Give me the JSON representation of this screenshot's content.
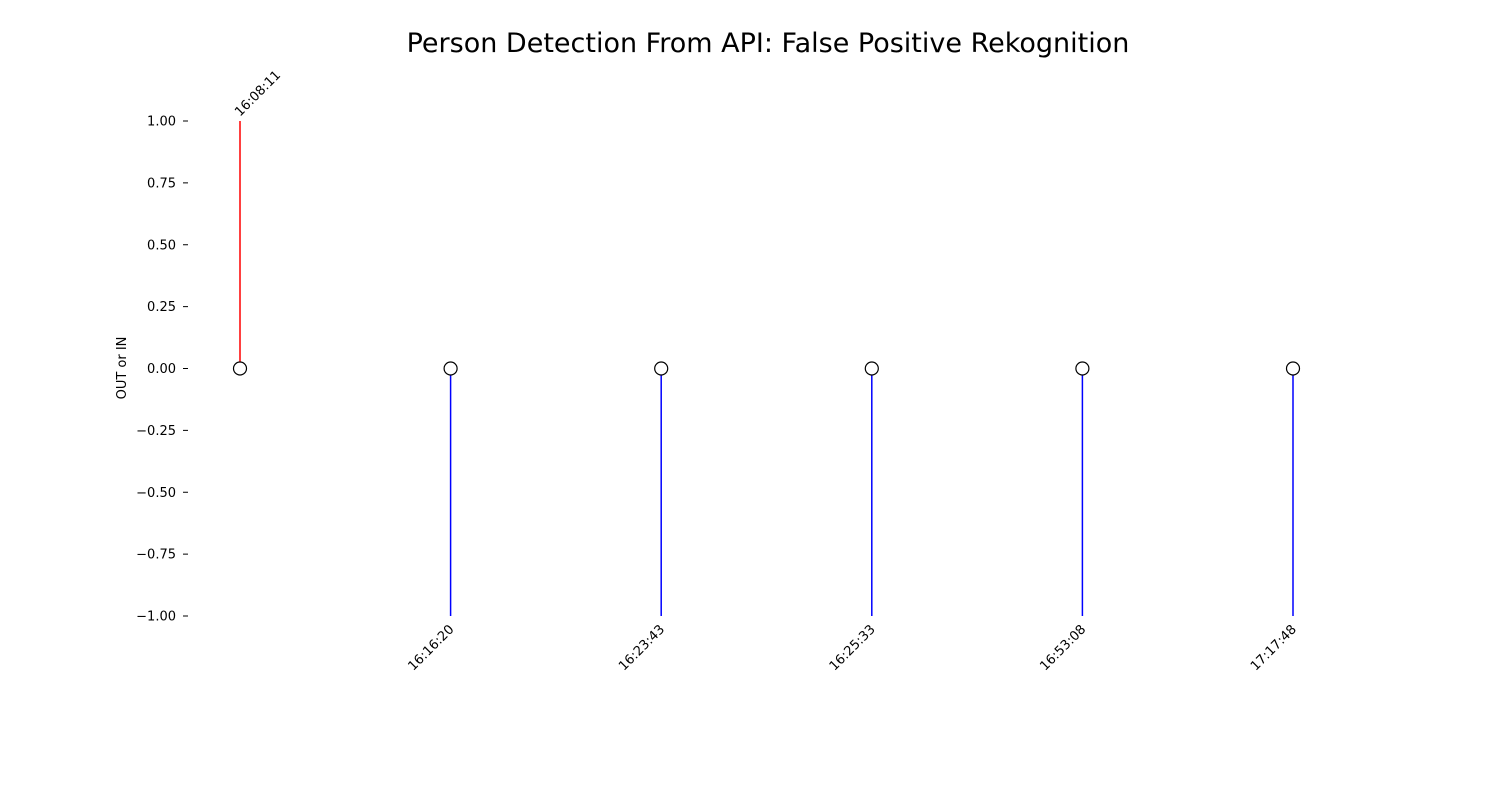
{
  "chart_data": {
    "type": "stem",
    "title": "Person Detection From API: False Positive Rekognition",
    "xlabel": "",
    "ylabel": "OUT or IN",
    "ylim": [
      -1.0,
      1.0
    ],
    "yticks": [
      "1.00",
      "0.75",
      "0.50",
      "0.25",
      "0.00",
      "−0.25",
      "−0.50",
      "−0.75",
      "−1.00"
    ],
    "ytick_values": [
      1.0,
      0.75,
      0.5,
      0.25,
      0.0,
      -0.25,
      -0.5,
      -0.75,
      -1.0
    ],
    "grid": false,
    "events": [
      {
        "time": "16:08:11",
        "value": 1
      },
      {
        "time": "16:16:20",
        "value": -1
      },
      {
        "time": "16:23:43",
        "value": -1
      },
      {
        "time": "16:25:33",
        "value": -1
      },
      {
        "time": "16:53:08",
        "value": -1
      },
      {
        "time": "17:17:48",
        "value": -1
      }
    ],
    "colors": {
      "positive": "#ff0000",
      "negative": "#0000ff",
      "marker_fill": "#ffffff",
      "marker_edge": "#000000"
    }
  }
}
